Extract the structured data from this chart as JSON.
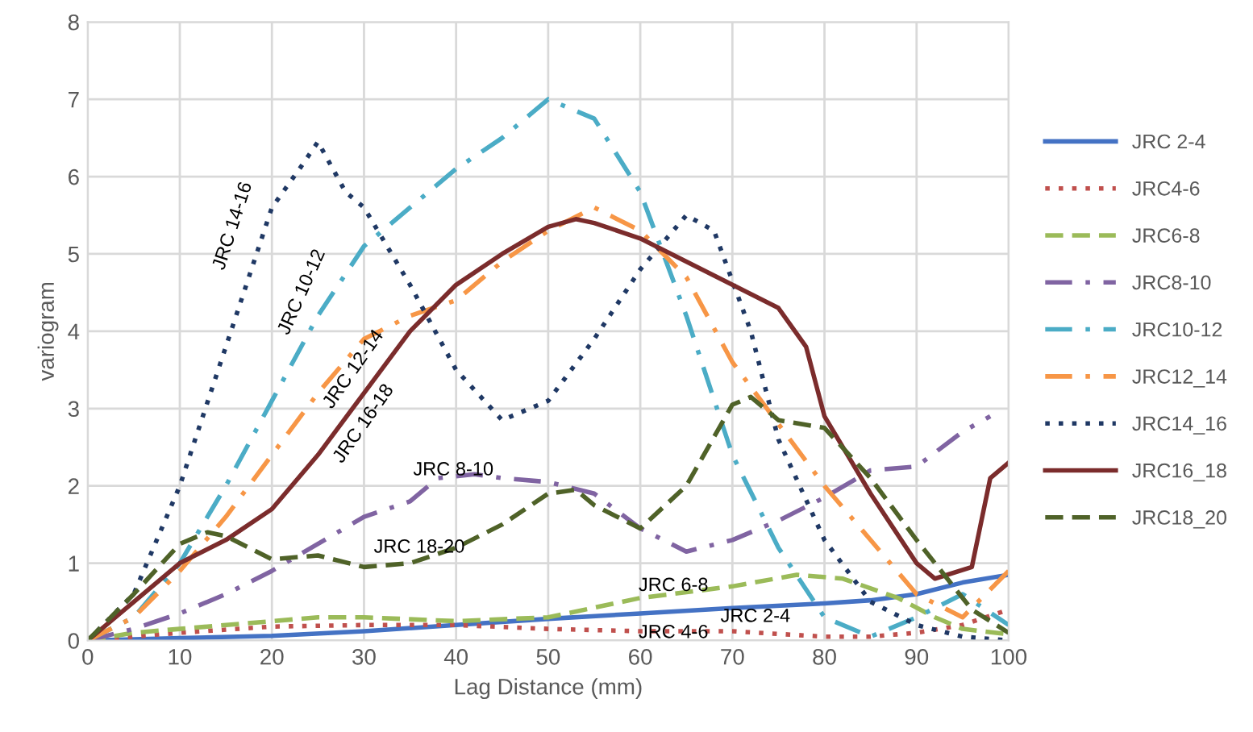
{
  "chart_data": {
    "type": "line",
    "xlabel": "Lag Distance (mm)",
    "ylabel": "variogram",
    "xlim": [
      0,
      100
    ],
    "ylim": [
      0,
      8
    ],
    "xticks": [
      0,
      10,
      20,
      30,
      40,
      50,
      60,
      70,
      80,
      90,
      100
    ],
    "yticks": [
      0,
      1,
      2,
      3,
      4,
      5,
      6,
      7,
      8
    ],
    "grid": true,
    "legend": "right",
    "marker": "none",
    "series": [
      {
        "name": "JRC 2-4",
        "color": "#4472c4",
        "line_style": "solid",
        "x": [
          0,
          10,
          20,
          30,
          40,
          50,
          60,
          70,
          80,
          85,
          90,
          95,
          100
        ],
        "values": [
          0,
          0.03,
          0.06,
          0.12,
          0.2,
          0.28,
          0.35,
          0.42,
          0.48,
          0.52,
          0.6,
          0.75,
          0.85
        ]
      },
      {
        "name": "JRC4-6",
        "color": "#c0504d",
        "line_style": "dotted",
        "x": [
          0,
          5,
          10,
          20,
          30,
          40,
          50,
          60,
          70,
          80,
          85,
          90,
          95,
          100
        ],
        "values": [
          0,
          0.05,
          0.1,
          0.18,
          0.2,
          0.2,
          0.15,
          0.12,
          0.12,
          0.05,
          0.05,
          0.1,
          0.2,
          0.4
        ]
      },
      {
        "name": "JRC6-8",
        "color": "#9bbb59",
        "line_style": "dashed",
        "x": [
          0,
          5,
          10,
          20,
          25,
          30,
          40,
          50,
          60,
          70,
          77,
          82,
          88,
          92,
          95,
          100
        ],
        "values": [
          0,
          0.1,
          0.15,
          0.25,
          0.3,
          0.3,
          0.25,
          0.3,
          0.55,
          0.7,
          0.85,
          0.8,
          0.55,
          0.3,
          0.15,
          0.08
        ]
      },
      {
        "name": "JRC8-10",
        "color": "#8064a2",
        "line_style": "dashdot",
        "x": [
          0,
          5,
          10,
          15,
          20,
          25,
          30,
          35,
          38,
          42,
          45,
          50,
          55,
          60,
          65,
          70,
          75,
          80,
          85,
          90,
          95,
          98
        ],
        "values": [
          0,
          0.15,
          0.35,
          0.6,
          0.9,
          1.25,
          1.6,
          1.8,
          2.1,
          2.15,
          2.1,
          2.05,
          1.9,
          1.45,
          1.15,
          1.3,
          1.55,
          1.85,
          2.2,
          2.25,
          2.7,
          2.9
        ]
      },
      {
        "name": "JRC10-12",
        "color": "#4bacc6",
        "line_style": "dashdot",
        "x": [
          0,
          5,
          10,
          15,
          20,
          25,
          30,
          35,
          40,
          45,
          50,
          55,
          60,
          65,
          70,
          75,
          80,
          85,
          90,
          95,
          100
        ],
        "values": [
          0,
          0.3,
          1.0,
          2.0,
          3.1,
          4.2,
          5.1,
          5.6,
          6.1,
          6.5,
          7.0,
          6.75,
          5.8,
          4.2,
          2.4,
          1.2,
          0.3,
          0.05,
          0.3,
          0.6,
          0.2
        ]
      },
      {
        "name": "JRC12_14",
        "color": "#f79646",
        "line_style": "dashdot",
        "x": [
          0,
          5,
          10,
          15,
          20,
          25,
          30,
          35,
          40,
          45,
          50,
          55,
          60,
          65,
          70,
          75,
          80,
          85,
          90,
          95,
          100
        ],
        "values": [
          0,
          0.3,
          0.9,
          1.6,
          2.4,
          3.2,
          3.9,
          4.2,
          4.4,
          4.9,
          5.3,
          5.6,
          5.3,
          4.7,
          3.6,
          2.8,
          2.0,
          1.3,
          0.6,
          0.3,
          0.9
        ]
      },
      {
        "name": "JRC14_16",
        "color": "#1f3864",
        "line_style": "dotted",
        "x": [
          0,
          5,
          10,
          15,
          20,
          23,
          25,
          28,
          30,
          35,
          40,
          45,
          50,
          55,
          60,
          65,
          68,
          72,
          75,
          80,
          85,
          90,
          95,
          100
        ],
        "values": [
          0,
          0.6,
          2.0,
          3.8,
          5.6,
          6.1,
          6.45,
          5.8,
          5.6,
          4.6,
          3.5,
          2.85,
          3.1,
          3.9,
          4.8,
          5.5,
          5.3,
          4.0,
          2.6,
          1.3,
          0.5,
          0.2,
          0.05,
          0
        ]
      },
      {
        "name": "JRC16_18",
        "color": "#7b2c2c",
        "line_style": "solid",
        "x": [
          0,
          5,
          10,
          15,
          20,
          25,
          30,
          35,
          40,
          45,
          50,
          53,
          55,
          60,
          65,
          70,
          75,
          78,
          80,
          85,
          90,
          92,
          96,
          98,
          100
        ],
        "values": [
          0,
          0.5,
          1.0,
          1.3,
          1.7,
          2.4,
          3.2,
          4.0,
          4.6,
          5.0,
          5.35,
          5.45,
          5.4,
          5.2,
          4.9,
          4.6,
          4.3,
          3.8,
          2.9,
          1.9,
          1.0,
          0.8,
          0.95,
          2.1,
          2.3
        ]
      },
      {
        "name": "JRC18_20",
        "color": "#4f6228",
        "line_style": "dashed",
        "x": [
          0,
          5,
          10,
          13,
          15,
          20,
          25,
          30,
          35,
          40,
          45,
          50,
          53,
          55,
          60,
          65,
          70,
          72,
          75,
          80,
          85,
          90,
          93,
          96,
          100
        ],
        "values": [
          0,
          0.6,
          1.25,
          1.4,
          1.35,
          1.05,
          1.1,
          0.95,
          1.0,
          1.2,
          1.5,
          1.9,
          1.95,
          1.75,
          1.45,
          2.0,
          3.05,
          3.15,
          2.85,
          2.75,
          2.1,
          1.3,
          0.85,
          0.4,
          0.1
        ]
      }
    ],
    "annotations": [
      "JRC 14-16",
      "JRC 10-12",
      "JRC 12-14",
      "JRC 16-18",
      "JRC 8-10",
      "JRC 18-20",
      "JRC 6-8",
      "JRC 2-4",
      "JRC 4-6"
    ]
  }
}
